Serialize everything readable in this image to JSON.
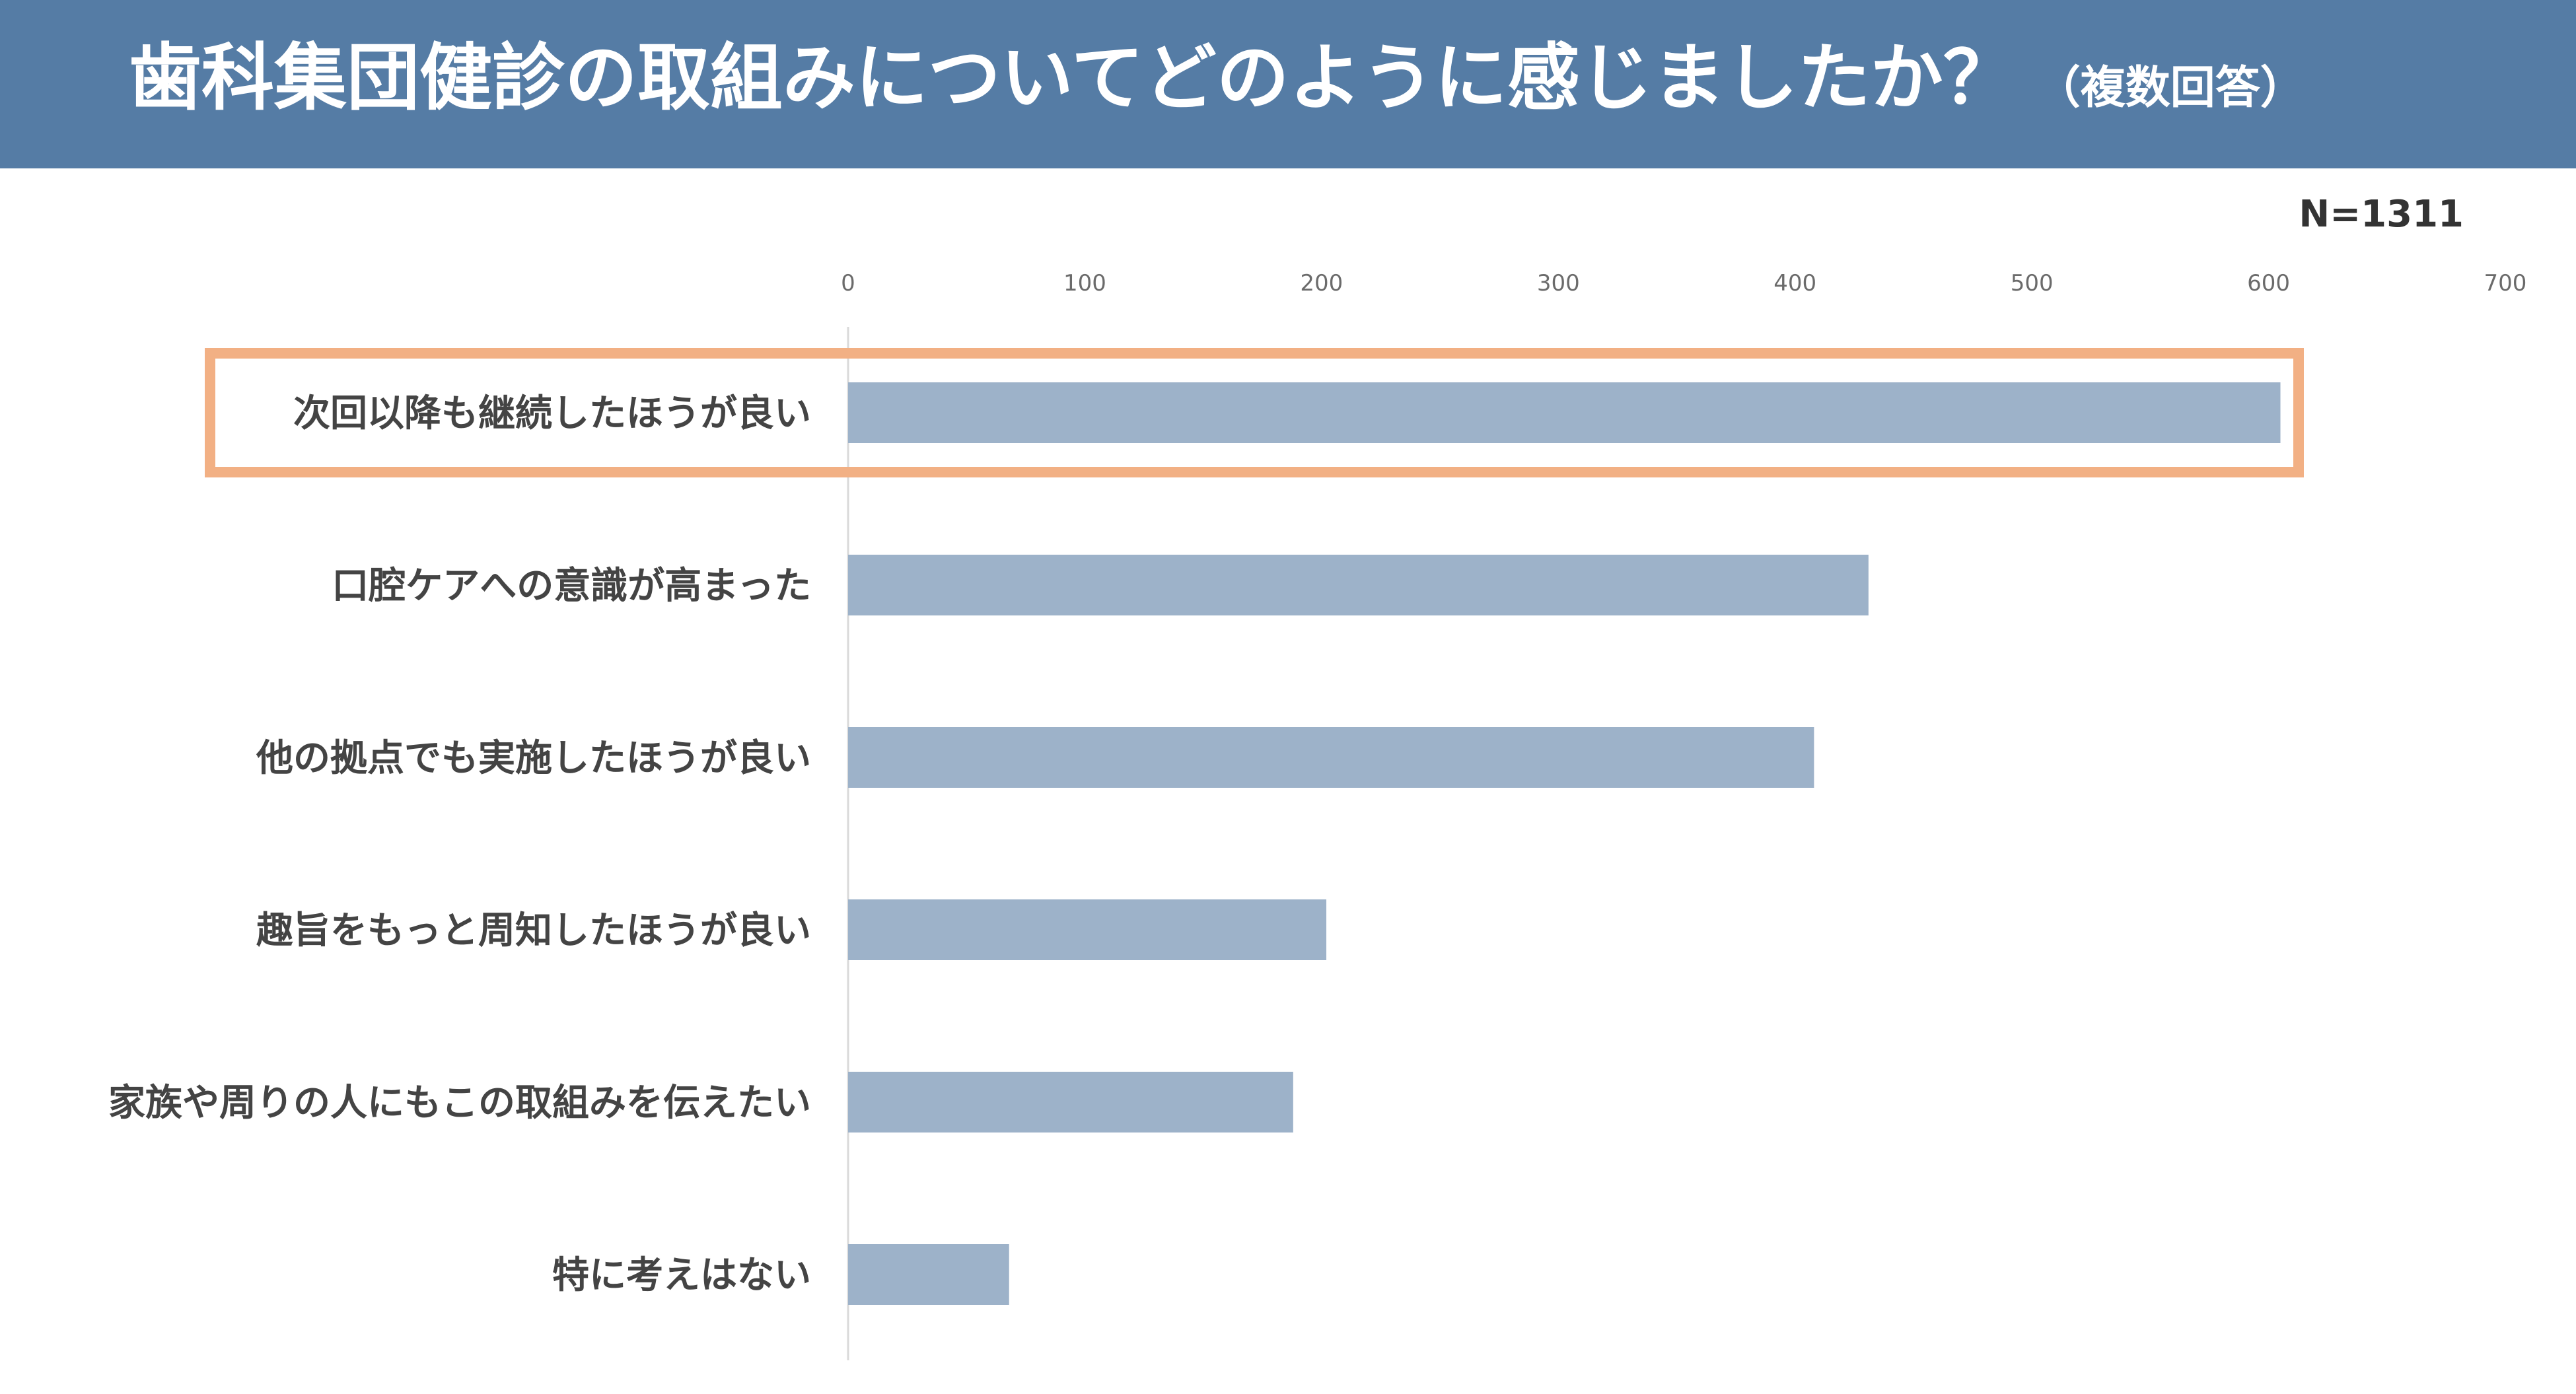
{
  "header": {
    "title": "歯科集団健診の取組みについてどのように感じましたか？",
    "subtitle": "（複数回答）"
  },
  "sample_size": "N=1311",
  "colors": {
    "header_bg": "#557ca5",
    "bar": "#9db2c9",
    "highlight": "#f2b084"
  },
  "chart_data": {
    "type": "bar",
    "orientation": "horizontal",
    "categories": [
      "次回以降も継続したほうが良い",
      "口腔ケアへの意識が高まった",
      "他の拠点でも実施したほうが良い",
      "趣旨をもっと周知したほうが良い",
      "家族や周りの人にもこの取組みを伝えたい",
      "特に考えはない"
    ],
    "values": [
      605,
      431,
      408,
      202,
      188,
      68
    ],
    "xlim": [
      0,
      700
    ],
    "xticks": [
      0,
      100,
      200,
      300,
      400,
      500,
      600,
      700
    ],
    "xtick_labels": [
      "0",
      "100",
      "200",
      "300",
      "400",
      "500",
      "600",
      "700"
    ],
    "axis_position": "top",
    "grid": false,
    "highlighted_category_index": 0
  }
}
